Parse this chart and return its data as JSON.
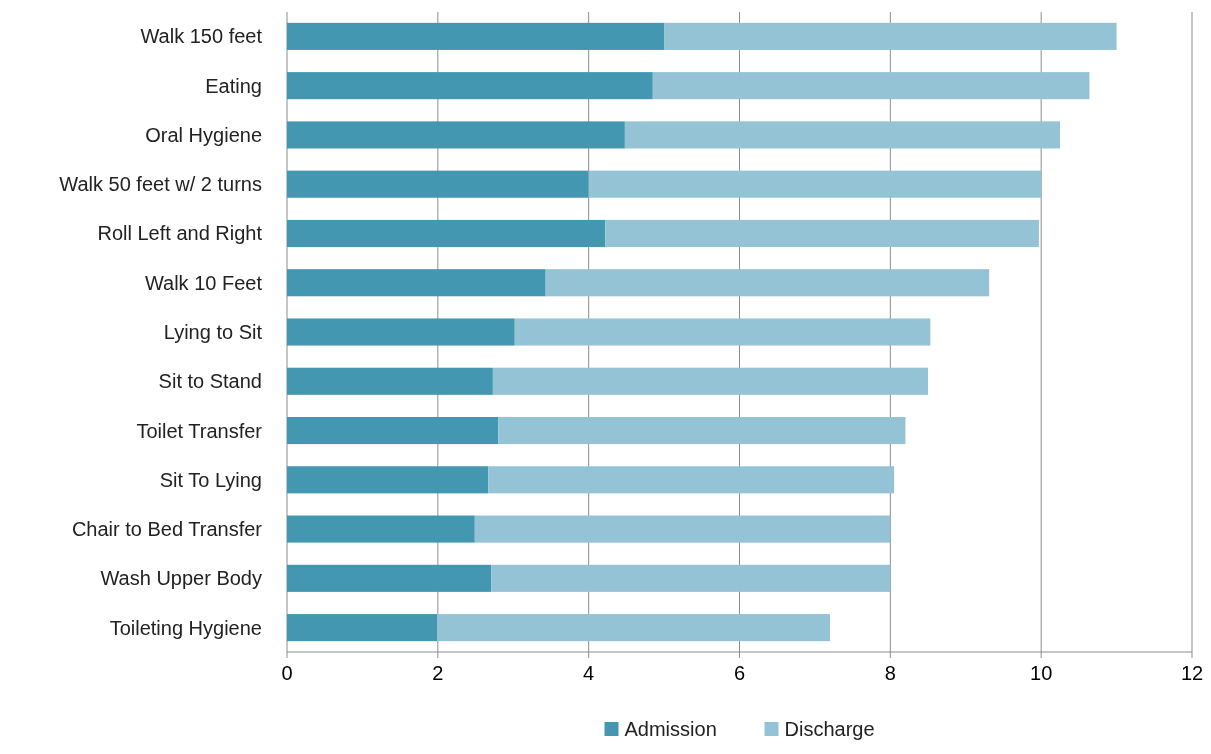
{
  "chart_data": {
    "type": "bar",
    "orientation": "horizontal",
    "stacked": true,
    "categories": [
      "Walk 150 feet",
      "Eating",
      "Oral Hygiene",
      "Walk 50 feet w/ 2 turns",
      "Roll Left and Right",
      "Walk 10 Feet",
      "Lying to Sit",
      "Sit to Stand",
      "Toilet Transfer",
      "Sit To Lying",
      "Chair to Bed Transfer",
      "Wash Upper Body",
      "Toileting Hygiene"
    ],
    "series": [
      {
        "name": "Admission",
        "color": "#4397b0",
        "values": [
          5.0,
          4.85,
          4.48,
          4.0,
          4.22,
          3.43,
          3.02,
          2.73,
          2.8,
          2.67,
          2.49,
          2.71,
          1.99
        ]
      },
      {
        "name": "Discharge",
        "color": "#93c3d5",
        "values": [
          6.0,
          5.79,
          5.77,
          6.0,
          5.75,
          5.88,
          5.51,
          5.77,
          5.4,
          5.38,
          5.51,
          5.29,
          5.21
        ]
      }
    ],
    "xlim": [
      0,
      12
    ],
    "xticks": [
      0,
      2,
      4,
      6,
      8,
      10,
      12
    ],
    "grid": "x",
    "legend": "bottom"
  }
}
